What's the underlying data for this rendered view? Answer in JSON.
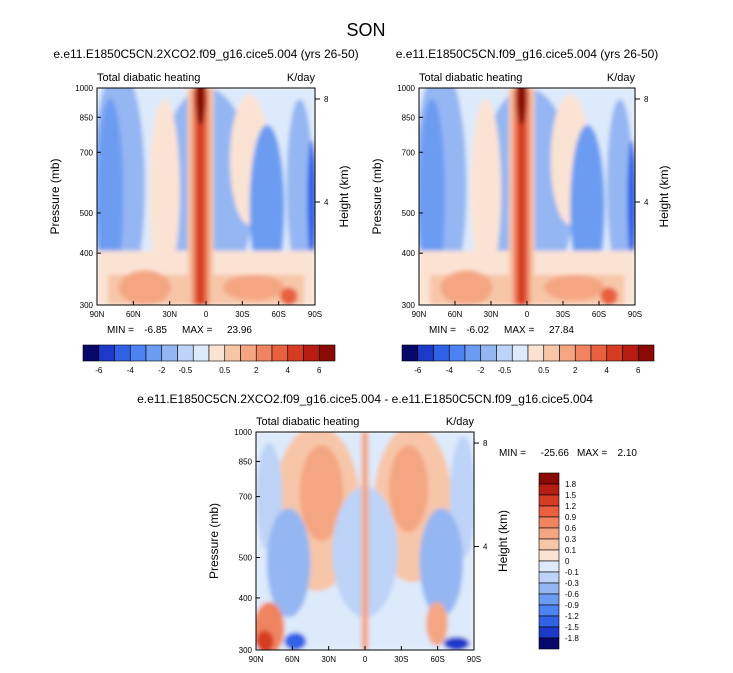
{
  "figure": {
    "title": "SON"
  },
  "palette_colors": [
    "#08086b",
    "#1c39c9",
    "#3062e6",
    "#4d82f2",
    "#6c9cf2",
    "#94b6f2",
    "#bdd3f7",
    "#ddeafb",
    "#fbe3d4",
    "#f7c6a8",
    "#f4a682",
    "#f08460",
    "#e8603f",
    "#d63c24",
    "#b71d12",
    "#8a0a06"
  ],
  "chart_data": [
    {
      "type": "heatmap",
      "title": "e.e11.E1850C5CN.2XCO2.f09_g16.cice5.004 (yrs 26-50)",
      "left_label": "Total diabatic heating",
      "right_label": "K/day",
      "ylabel": "Pressure (mb)",
      "ylabel_right": "Height (km)",
      "x_ticks": [
        "90N",
        "60N",
        "30N",
        "0",
        "30S",
        "60S",
        "90S"
      ],
      "y_ticks": [
        "300",
        "400",
        "500",
        "700",
        "850",
        "1000"
      ],
      "y_ticks_right": [
        "8",
        "4"
      ],
      "xlim": [
        90,
        -90
      ],
      "ylim": [
        1000,
        300
      ],
      "stats": {
        "min_label": "MIN =",
        "min": "-6.85",
        "max_label": "MAX =",
        "max": "23.96"
      },
      "colorbar": {
        "orientation": "horizontal",
        "labels": [
          "-6",
          "-4",
          "-2",
          "-0.5",
          "0.5",
          "2",
          "4",
          "6"
        ]
      }
    },
    {
      "type": "heatmap",
      "title": "e.e11.E1850C5CN.f09_g16.cice5.004 (yrs 26-50)",
      "left_label": "Total diabatic heating",
      "right_label": "K/day",
      "ylabel": "Pressure (mb)",
      "ylabel_right": "Height (km)",
      "x_ticks": [
        "90N",
        "60N",
        "30N",
        "0",
        "30S",
        "60S",
        "90S"
      ],
      "y_ticks": [
        "300",
        "400",
        "500",
        "700",
        "850",
        "1000"
      ],
      "y_ticks_right": [
        "8",
        "4"
      ],
      "xlim": [
        90,
        -90
      ],
      "ylim": [
        1000,
        300
      ],
      "stats": {
        "min_label": "MIN =",
        "min": "-6.02",
        "max_label": "MAX =",
        "max": "27.84"
      },
      "colorbar": {
        "orientation": "horizontal",
        "labels": [
          "-6",
          "-4",
          "-2",
          "-0.5",
          "0.5",
          "2",
          "4",
          "6"
        ]
      }
    },
    {
      "type": "heatmap",
      "title": "e.e11.E1850C5CN.2XCO2.f09_g16.cice5.004 - e.e11.E1850C5CN.f09_g16.cice5.004",
      "left_label": "Total diabatic heating",
      "right_label": "K/day",
      "ylabel": "Pressure (mb)",
      "ylabel_right": "Height (km)",
      "x_ticks": [
        "90N",
        "60N",
        "30N",
        "0",
        "30S",
        "60S",
        "90S"
      ],
      "y_ticks": [
        "300",
        "400",
        "500",
        "700",
        "850",
        "1000"
      ],
      "y_ticks_right": [
        "8",
        "4"
      ],
      "xlim": [
        90,
        -90
      ],
      "ylim": [
        1000,
        300
      ],
      "stats": {
        "min_label": "MIN =",
        "min": "-25.66",
        "max_label": "MAX =",
        "max": "2.10"
      },
      "colorbar": {
        "orientation": "vertical",
        "labels": [
          "1.8",
          "1.5",
          "1.2",
          "0.9",
          "0.6",
          "0.3",
          "0.1",
          "0",
          "-0.1",
          "-0.3",
          "-0.6",
          "-0.9",
          "-1.2",
          "-1.5",
          "-1.8"
        ]
      }
    }
  ]
}
